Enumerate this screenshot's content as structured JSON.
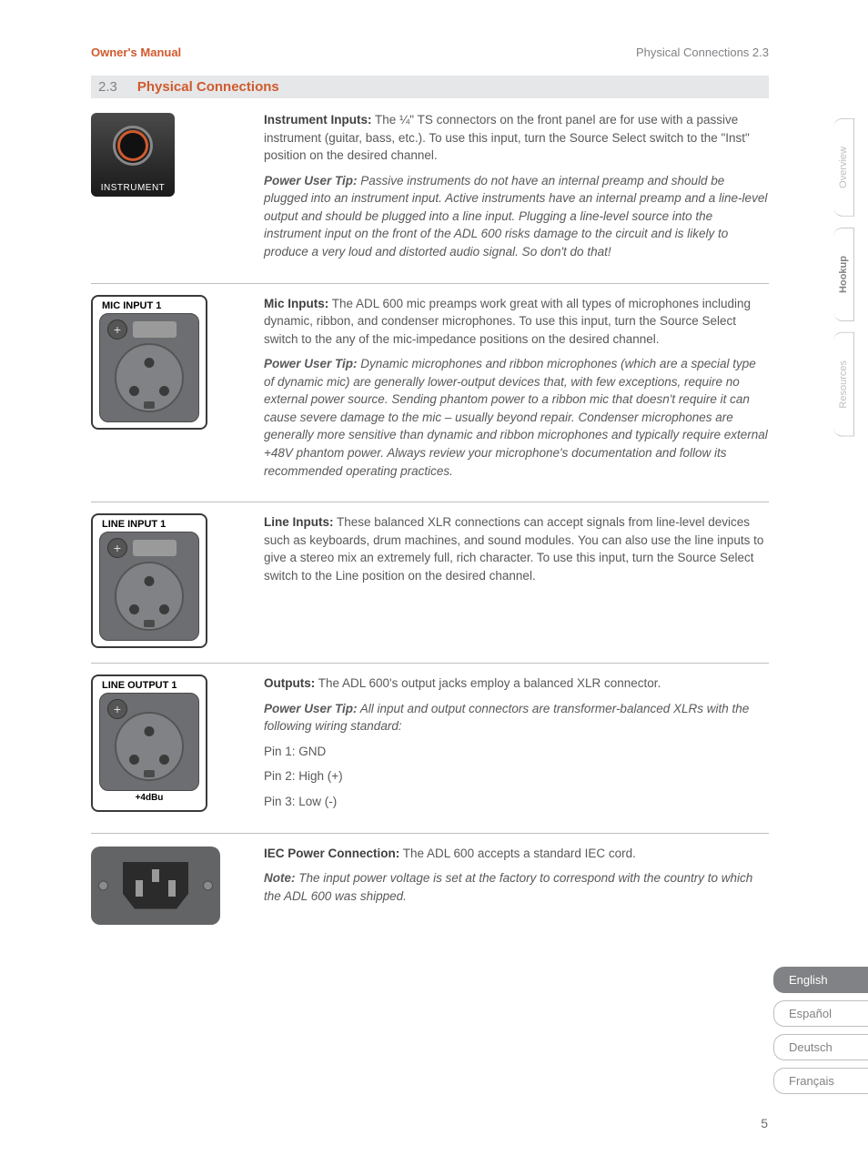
{
  "header": {
    "left": "Owner's Manual",
    "right": "Physical Connections    2.3"
  },
  "section": {
    "num": "2.3",
    "title": "Physical Connections"
  },
  "instrument": {
    "diagram_label": "INSTRUMENT",
    "heading": "Instrument Inputs:",
    "body": " The ¼\" TS connectors on the front panel are for use with a passive instrument (guitar, bass, etc.). To use this input, turn the Source Select switch to the \"Inst\" position on the desired channel.",
    "tip_label": "Power User Tip:",
    "tip_body": " Passive instruments do not have an internal preamp and should be plugged into an instrument input. Active instruments have an internal preamp and a line-level output and should be plugged into a line input. Plugging a line-level source into the instrument input on the front of the ADL 600 risks damage to the circuit and is likely to produce a very loud and distorted audio signal. So don't do that!"
  },
  "mic": {
    "diagram_label": "MIC INPUT 1",
    "heading": "Mic Inputs:",
    "body": " The ADL 600 mic preamps work great with all types of microphones including dynamic, ribbon, and condenser microphones. To use this input, turn the Source Select switch to the any of the mic-impedance positions on the desired channel.",
    "tip_label": "Power User Tip:",
    "tip_body": " Dynamic microphones and ribbon microphones (which are a special type of dynamic mic) are generally lower-output devices that, with few exceptions, require no external power source. Sending phantom power to a ribbon mic that doesn't require it can cause severe damage to the mic – usually beyond repair. Condenser microphones are generally more sensitive than dynamic and ribbon microphones and typically require external +48V phantom power. Always review your microphone's documentation and follow its recommended operating practices."
  },
  "line_in": {
    "diagram_label": "LINE INPUT 1",
    "heading": "Line Inputs:",
    "body": " These balanced XLR connections can accept signals from line-level devices such as keyboards, drum machines, and sound modules. You can also use the line inputs to give a stereo mix an extremely full, rich character. To use this input, turn the Source Select switch to the Line position on the desired channel."
  },
  "line_out": {
    "diagram_label": "LINE OUTPUT 1",
    "diagram_footer": "+4dBu",
    "heading": "Outputs:",
    "body": " The ADL 600's output jacks employ a balanced XLR connector.",
    "tip_label": "Power User Tip:",
    "tip_body": " All input and output connectors are transformer-balanced XLRs with the following wiring standard:",
    "pins": {
      "p1": "Pin 1: GND",
      "p2": "Pin 2: High (+)",
      "p3": "Pin 3: Low (-)"
    }
  },
  "iec": {
    "heading": "IEC Power Connection:",
    "body": " The ADL 600 accepts a standard IEC cord.",
    "note_label": "Note:",
    "note_body": " The input power voltage is set at the factory to correspond with the country to which the ADL 600 was shipped."
  },
  "side_tabs": {
    "overview": "Overview",
    "hookup": "Hookup",
    "resources": "Resources"
  },
  "languages": {
    "en": "English",
    "es": "Español",
    "de": "Deutsch",
    "fr": "Français"
  },
  "page_number": "5",
  "colors": {
    "accent": "#d05a2e",
    "text": "#58595b",
    "muted": "#808285",
    "rule": "#bcbec0",
    "section_bg": "#e6e7e8"
  }
}
